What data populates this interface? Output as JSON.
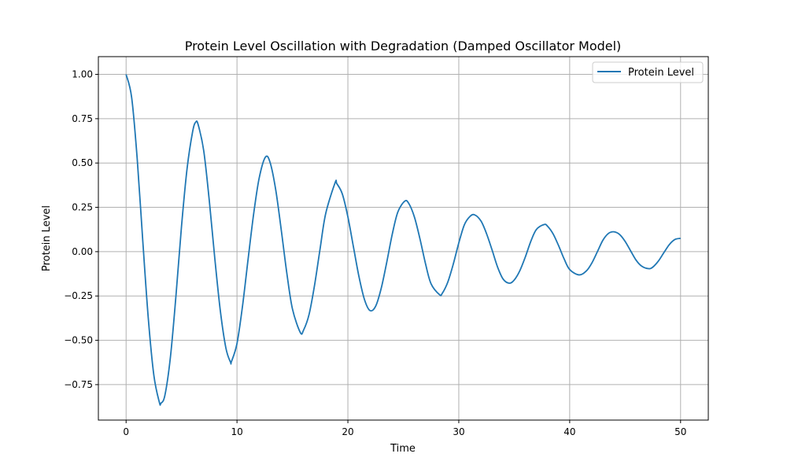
{
  "chart_data": {
    "type": "line",
    "title": "Protein Level Oscillation with Degradation (Damped Oscillator Model)",
    "xlabel": "Time",
    "ylabel": "Protein Level",
    "xlim": [
      -2.5,
      52.5
    ],
    "ylim": [
      -0.95,
      1.1
    ],
    "xticks": [
      0,
      10,
      20,
      30,
      40,
      50
    ],
    "yticks": [
      -0.75,
      -0.5,
      -0.25,
      0.0,
      0.25,
      0.5,
      0.75,
      1.0
    ],
    "xtick_labels": [
      "0",
      "10",
      "20",
      "30",
      "40",
      "50"
    ],
    "ytick_labels": [
      "−0.75",
      "−0.50",
      "−0.25",
      "0.00",
      "0.25",
      "0.50",
      "0.75",
      "1.00"
    ],
    "grid": true,
    "legend_position": "top-right",
    "series": [
      {
        "name": "Protein Level",
        "color": "#1f77b4",
        "x": [
          0,
          0.5,
          1.0,
          1.5,
          2.0,
          2.5,
          3.0,
          3.14,
          3.5,
          4.0,
          4.5,
          5.0,
          5.5,
          6.0,
          6.28,
          6.5,
          7.0,
          7.5,
          8.0,
          8.5,
          9.0,
          9.42,
          9.5,
          10.0,
          10.5,
          11.0,
          11.5,
          12.0,
          12.57,
          13.0,
          13.5,
          14.0,
          14.5,
          15.0,
          15.71,
          16.0,
          16.5,
          17.0,
          17.5,
          18.0,
          18.85,
          19.0,
          19.5,
          20.0,
          20.5,
          21.0,
          21.5,
          21.99,
          22.5,
          23.0,
          23.5,
          24.0,
          24.5,
          25.13,
          25.5,
          26.0,
          26.5,
          27.0,
          27.5,
          28.27,
          28.5,
          29.0,
          29.5,
          30.0,
          30.5,
          31.0,
          31.42,
          32.0,
          32.5,
          33.0,
          33.5,
          34.0,
          34.56,
          35.0,
          35.5,
          36.0,
          36.5,
          37.0,
          37.7,
          38.0,
          38.5,
          39.0,
          39.5,
          40.0,
          40.84,
          41.5,
          42.0,
          42.5,
          43.0,
          43.5,
          43.98,
          44.5,
          45.0,
          45.5,
          46.0,
          46.5,
          47.12,
          47.5,
          48.0,
          48.5,
          49.0,
          49.5,
          50.0
        ],
        "y": [
          1.0,
          0.87,
          0.525,
          0.064,
          -0.375,
          -0.696,
          -0.85,
          -0.855,
          -0.81,
          -0.593,
          -0.246,
          0.145,
          0.469,
          0.677,
          0.731,
          0.716,
          0.569,
          0.289,
          -0.039,
          -0.335,
          -0.544,
          -0.624,
          -0.62,
          -0.518,
          -0.306,
          -0.043,
          0.212,
          0.415,
          0.534,
          0.5,
          0.346,
          0.118,
          -0.124,
          -0.323,
          -0.456,
          -0.443,
          -0.354,
          -0.187,
          0.019,
          0.215,
          0.389,
          0.384,
          0.325,
          0.196,
          0.027,
          -0.141,
          -0.271,
          -0.332,
          -0.308,
          -0.208,
          -0.061,
          0.098,
          0.223,
          0.285,
          0.271,
          0.195,
          0.072,
          -0.068,
          -0.181,
          -0.243,
          -0.236,
          -0.173,
          -0.071,
          0.049,
          0.151,
          0.198,
          0.208,
          0.173,
          0.102,
          0.01,
          -0.087,
          -0.155,
          -0.178,
          -0.16,
          -0.108,
          -0.03,
          0.059,
          0.125,
          0.153,
          0.144,
          0.101,
          0.034,
          -0.041,
          -0.101,
          -0.131,
          -0.109,
          -0.064,
          0.0,
          0.065,
          0.103,
          0.112,
          0.097,
          0.058,
          0.004,
          -0.049,
          -0.082,
          -0.096,
          -0.087,
          -0.053,
          -0.005,
          0.041,
          0.069,
          0.075
        ]
      }
    ]
  }
}
